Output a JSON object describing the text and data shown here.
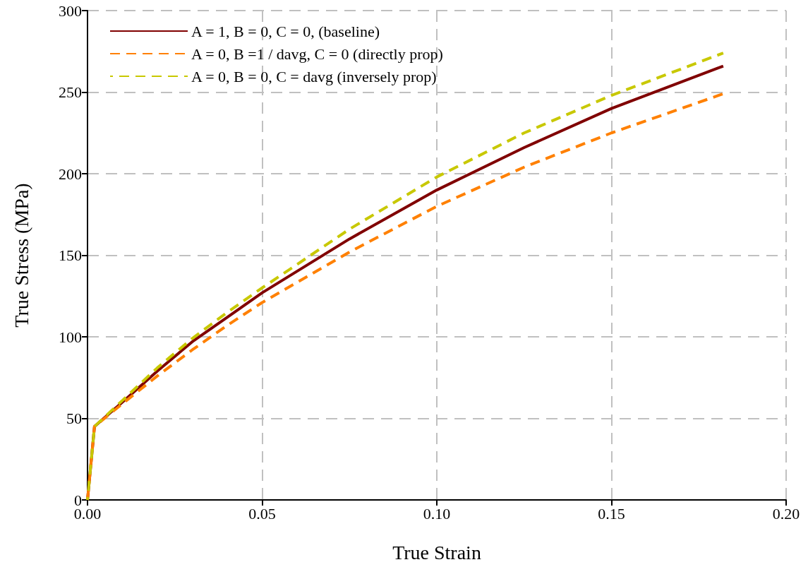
{
  "chart_data": {
    "type": "line",
    "xlabel": "True Strain",
    "ylabel": "True Stress (MPa)",
    "xlim": [
      0,
      0.2
    ],
    "xticks": [
      {
        "value": 0,
        "label": "0.00"
      },
      {
        "value": 0.05,
        "label": "0.05"
      },
      {
        "value": 0.1,
        "label": "0.10"
      },
      {
        "value": 0.15,
        "label": "0.15"
      },
      {
        "value": 0.2,
        "label": "0.20"
      }
    ],
    "ylim": [
      0,
      300
    ],
    "yticks": [
      0,
      50,
      100,
      150,
      200,
      250,
      300
    ],
    "grid": true,
    "legend": "top left",
    "marker": "none",
    "series": [
      {
        "name": "A = 1, B = 0, C = 0, (baseline)",
        "color": "#800000",
        "line_style": "solid",
        "x": [
          0,
          0.002,
          0.01,
          0.02,
          0.03,
          0.04,
          0.05,
          0.075,
          0.1,
          0.125,
          0.15,
          0.182
        ],
        "values": [
          0,
          45,
          60,
          79,
          97,
          112,
          127,
          160,
          190,
          216,
          240,
          266
        ]
      },
      {
        "name": "A = 0, B =1 / davg, C = 0 (directly prop)",
        "color": "#ff8000",
        "line_style": "dashed",
        "x": [
          0,
          0.002,
          0.01,
          0.02,
          0.03,
          0.04,
          0.05,
          0.075,
          0.1,
          0.125,
          0.15,
          0.182
        ],
        "values": [
          0,
          45,
          59,
          76,
          92,
          107,
          121,
          152,
          180,
          204,
          225,
          249
        ]
      },
      {
        "name": "A = 0, B = 0, C = davg (inversely prop)",
        "color": "#c8c800",
        "line_style": "dashed",
        "x": [
          0,
          0.002,
          0.01,
          0.02,
          0.03,
          0.04,
          0.05,
          0.075,
          0.1,
          0.125,
          0.15,
          0.182
        ],
        "values": [
          0,
          45,
          61,
          81,
          99,
          115,
          130,
          166,
          198,
          225,
          248,
          274
        ]
      }
    ]
  }
}
